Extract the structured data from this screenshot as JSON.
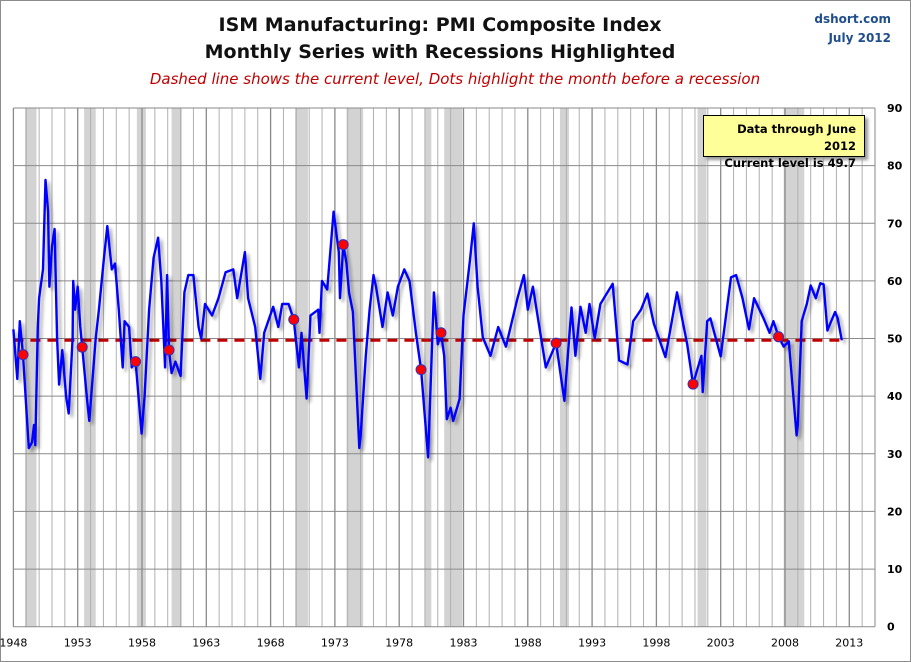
{
  "header": {
    "title_line1": "ISM Manufacturing: PMI Composite Index",
    "title_line2": "Monthly Series with Recessions Highlighted",
    "subtitle": "Dashed line shows the current level, Dots highlight the month before a recession",
    "source": "dshort.com",
    "date": "July 2012"
  },
  "annotation": {
    "line1": "Data through June 2012",
    "line2": "Current level is 49.7"
  },
  "chart_data": {
    "type": "line",
    "title": "ISM Manufacturing: PMI Composite Index",
    "xlim": [
      1948,
      2015
    ],
    "ylim": [
      0,
      90
    ],
    "x_ticks": [
      "1948",
      "1953",
      "1958",
      "1963",
      "1968",
      "1973",
      "1978",
      "1983",
      "1988",
      "1993",
      "1998",
      "2003",
      "2008",
      "2013"
    ],
    "y_ticks": [
      "0",
      "10",
      "20",
      "30",
      "40",
      "50",
      "60",
      "70",
      "80",
      "90"
    ],
    "y_axis_side": "right",
    "grid": true,
    "colors": {
      "series": "#0000ff",
      "dots": "#ff0000",
      "current_line": "#c00000",
      "recession": "#d3d3d3"
    },
    "current_level": 49.7,
    "series": [
      {
        "values": [
          [
            1948.0,
            51.6
          ],
          [
            1948.3,
            43
          ],
          [
            1948.5,
            53
          ],
          [
            1948.75,
            47.2
          ],
          [
            1949.2,
            31
          ],
          [
            1949.45,
            32
          ],
          [
            1949.6,
            35
          ],
          [
            1949.7,
            31.5
          ],
          [
            1949.9,
            52
          ],
          [
            1950.0,
            57
          ],
          [
            1950.3,
            62
          ],
          [
            1950.5,
            77.5
          ],
          [
            1950.7,
            72
          ],
          [
            1950.8,
            59
          ],
          [
            1951.0,
            66
          ],
          [
            1951.2,
            69
          ],
          [
            1951.4,
            50
          ],
          [
            1951.55,
            42
          ],
          [
            1951.8,
            48
          ],
          [
            1952.1,
            40
          ],
          [
            1952.3,
            37
          ],
          [
            1952.6,
            50
          ],
          [
            1952.65,
            60
          ],
          [
            1952.8,
            55
          ],
          [
            1953.0,
            59
          ],
          [
            1953.2,
            52
          ],
          [
            1953.35,
            48.5
          ],
          [
            1953.75,
            39
          ],
          [
            1953.9,
            35.7
          ],
          [
            1954.4,
            50
          ],
          [
            1954.65,
            55
          ],
          [
            1955.0,
            63
          ],
          [
            1955.3,
            69.5
          ],
          [
            1955.65,
            62
          ],
          [
            1955.9,
            63
          ],
          [
            1956.2,
            55
          ],
          [
            1956.5,
            45
          ],
          [
            1956.65,
            53
          ],
          [
            1957.0,
            52
          ],
          [
            1957.2,
            45
          ],
          [
            1957.5,
            46
          ],
          [
            1957.97,
            33.5
          ],
          [
            1958.2,
            40
          ],
          [
            1958.55,
            55
          ],
          [
            1958.9,
            64
          ],
          [
            1959.25,
            67.5
          ],
          [
            1959.5,
            60
          ],
          [
            1959.8,
            45
          ],
          [
            1959.95,
            61
          ],
          [
            1960.1,
            48
          ],
          [
            1960.3,
            44
          ],
          [
            1960.6,
            46
          ],
          [
            1961.0,
            43.5
          ],
          [
            1961.3,
            58
          ],
          [
            1961.6,
            61
          ],
          [
            1962.0,
            61
          ],
          [
            1962.4,
            52
          ],
          [
            1962.6,
            50
          ],
          [
            1962.9,
            56
          ],
          [
            1963.45,
            54
          ],
          [
            1963.95,
            57
          ],
          [
            1964.5,
            61.5
          ],
          [
            1965.1,
            62
          ],
          [
            1965.4,
            57
          ],
          [
            1966.0,
            65
          ],
          [
            1966.25,
            57
          ],
          [
            1966.8,
            52
          ],
          [
            1967.2,
            43
          ],
          [
            1967.5,
            51
          ],
          [
            1968.2,
            55.5
          ],
          [
            1968.6,
            52
          ],
          [
            1968.9,
            56
          ],
          [
            1969.4,
            56
          ],
          [
            1969.8,
            53.3
          ],
          [
            1970.2,
            45
          ],
          [
            1970.4,
            51
          ],
          [
            1970.8,
            39.6
          ],
          [
            1971.1,
            54
          ],
          [
            1971.7,
            55
          ],
          [
            1971.8,
            51
          ],
          [
            1972.0,
            60
          ],
          [
            1972.4,
            58.5
          ],
          [
            1972.9,
            72
          ],
          [
            1973.3,
            65
          ],
          [
            1973.4,
            57
          ],
          [
            1973.65,
            66.3
          ],
          [
            1973.9,
            63
          ],
          [
            1974.1,
            58
          ],
          [
            1974.4,
            54.6
          ],
          [
            1974.9,
            31
          ],
          [
            1975.0,
            33
          ],
          [
            1975.4,
            47
          ],
          [
            1975.7,
            55
          ],
          [
            1976.0,
            61
          ],
          [
            1976.2,
            59
          ],
          [
            1976.7,
            52
          ],
          [
            1977.1,
            58
          ],
          [
            1977.5,
            54
          ],
          [
            1977.9,
            59
          ],
          [
            1978.4,
            62
          ],
          [
            1978.8,
            60
          ],
          [
            1979.3,
            51
          ],
          [
            1979.7,
            44.6
          ],
          [
            1980.25,
            29.4
          ],
          [
            1980.7,
            58
          ],
          [
            1981.0,
            49
          ],
          [
            1981.25,
            51
          ],
          [
            1981.5,
            47
          ],
          [
            1981.7,
            36
          ],
          [
            1982.0,
            38
          ],
          [
            1982.2,
            35.7
          ],
          [
            1982.7,
            39.5
          ],
          [
            1983.0,
            54
          ],
          [
            1983.5,
            63.5
          ],
          [
            1983.8,
            70
          ],
          [
            1984.1,
            59
          ],
          [
            1984.5,
            50.2
          ],
          [
            1985.1,
            47
          ],
          [
            1985.7,
            52
          ],
          [
            1986.3,
            48.6
          ],
          [
            1987.2,
            57
          ],
          [
            1987.7,
            61
          ],
          [
            1988.0,
            55
          ],
          [
            1988.4,
            59
          ],
          [
            1989.4,
            45
          ],
          [
            1990.2,
            49.2
          ],
          [
            1990.85,
            39.2
          ],
          [
            1991.4,
            55.4
          ],
          [
            1991.7,
            47
          ],
          [
            1992.1,
            55.5
          ],
          [
            1992.5,
            51
          ],
          [
            1992.8,
            56
          ],
          [
            1993.2,
            50
          ],
          [
            1993.65,
            56
          ],
          [
            1994.6,
            59.5
          ],
          [
            1995.1,
            46.2
          ],
          [
            1995.75,
            45.5
          ],
          [
            1996.2,
            53
          ],
          [
            1996.8,
            55
          ],
          [
            1997.3,
            57.8
          ],
          [
            1997.8,
            52.6
          ],
          [
            1998.7,
            46.8
          ],
          [
            1999.6,
            58
          ],
          [
            2000.4,
            49
          ],
          [
            2000.85,
            42.1
          ],
          [
            2001.5,
            47
          ],
          [
            2001.6,
            40.7
          ],
          [
            2001.95,
            53
          ],
          [
            2002.2,
            53.5
          ],
          [
            2003.0,
            46.9
          ],
          [
            2003.8,
            60.6
          ],
          [
            2004.2,
            61
          ],
          [
            2004.7,
            57
          ],
          [
            2005.2,
            51.6
          ],
          [
            2005.6,
            57
          ],
          [
            2006.35,
            53.4
          ],
          [
            2006.8,
            51
          ],
          [
            2007.1,
            53
          ],
          [
            2007.5,
            50.3
          ],
          [
            2007.9,
            48.6
          ],
          [
            2008.3,
            49.5
          ],
          [
            2008.9,
            33.2
          ],
          [
            2009.0,
            35
          ],
          [
            2009.3,
            53
          ],
          [
            2009.7,
            56
          ],
          [
            2010.0,
            59.2
          ],
          [
            2010.4,
            57
          ],
          [
            2010.75,
            59.6
          ],
          [
            2011.0,
            59.4
          ],
          [
            2011.3,
            51.4
          ],
          [
            2011.5,
            52.5
          ],
          [
            2011.9,
            54.6
          ],
          [
            2012.1,
            53.5
          ],
          [
            2012.42,
            49.7
          ]
        ]
      }
    ],
    "pre_recession_points": [
      [
        1948.75,
        47.2
      ],
      [
        1953.35,
        48.5
      ],
      [
        1957.5,
        46
      ],
      [
        1960.1,
        48
      ],
      [
        1969.8,
        53.3
      ],
      [
        1973.65,
        66.3
      ],
      [
        1979.7,
        44.6
      ],
      [
        1981.25,
        51
      ],
      [
        1990.2,
        49.2
      ],
      [
        2000.85,
        42.1
      ],
      [
        2007.5,
        50.3
      ]
    ],
    "recessions": [
      [
        1948.9,
        1949.8
      ],
      [
        1953.5,
        1954.4
      ],
      [
        1957.6,
        1958.3
      ],
      [
        1960.3,
        1961.1
      ],
      [
        1969.9,
        1970.9
      ],
      [
        1973.9,
        1975.2
      ],
      [
        1980.0,
        1980.5
      ],
      [
        1981.5,
        1982.9
      ],
      [
        1990.5,
        1991.2
      ],
      [
        2001.2,
        2001.9
      ],
      [
        2007.9,
        2009.5
      ]
    ]
  }
}
